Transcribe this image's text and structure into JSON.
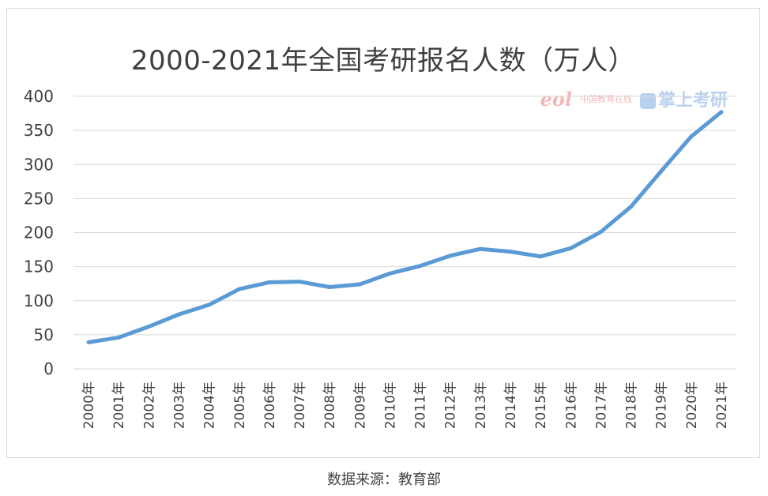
{
  "chart_data": {
    "type": "line",
    "title": "2000-2021年全国考研报名人数（万人）",
    "categories": [
      "2000年",
      "2001年",
      "2002年",
      "2003年",
      "2004年",
      "2005年",
      "2006年",
      "2007年",
      "2008年",
      "2009年",
      "2010年",
      "2011年",
      "2012年",
      "2013年",
      "2014年",
      "2015年",
      "2016年",
      "2017年",
      "2018年",
      "2019年",
      "2020年",
      "2021年"
    ],
    "series": [
      {
        "values": [
          39,
          46,
          62,
          80,
          94,
          117,
          127,
          128,
          120,
          124,
          140,
          151,
          166,
          176,
          172,
          165,
          177,
          201,
          238,
          290,
          341,
          377
        ]
      }
    ],
    "ylim": [
      0,
      400
    ],
    "yticks": [
      "0",
      "50",
      "100",
      "150",
      "200",
      "250",
      "300",
      "350",
      "400"
    ],
    "grid": true,
    "line_color": "#5b9bd5",
    "grid_color": "#d9d9d9"
  },
  "watermark": {
    "eol": "eol",
    "site": "中国教育在线",
    "brand": "掌上考研"
  },
  "source": "数据来源：教育部"
}
